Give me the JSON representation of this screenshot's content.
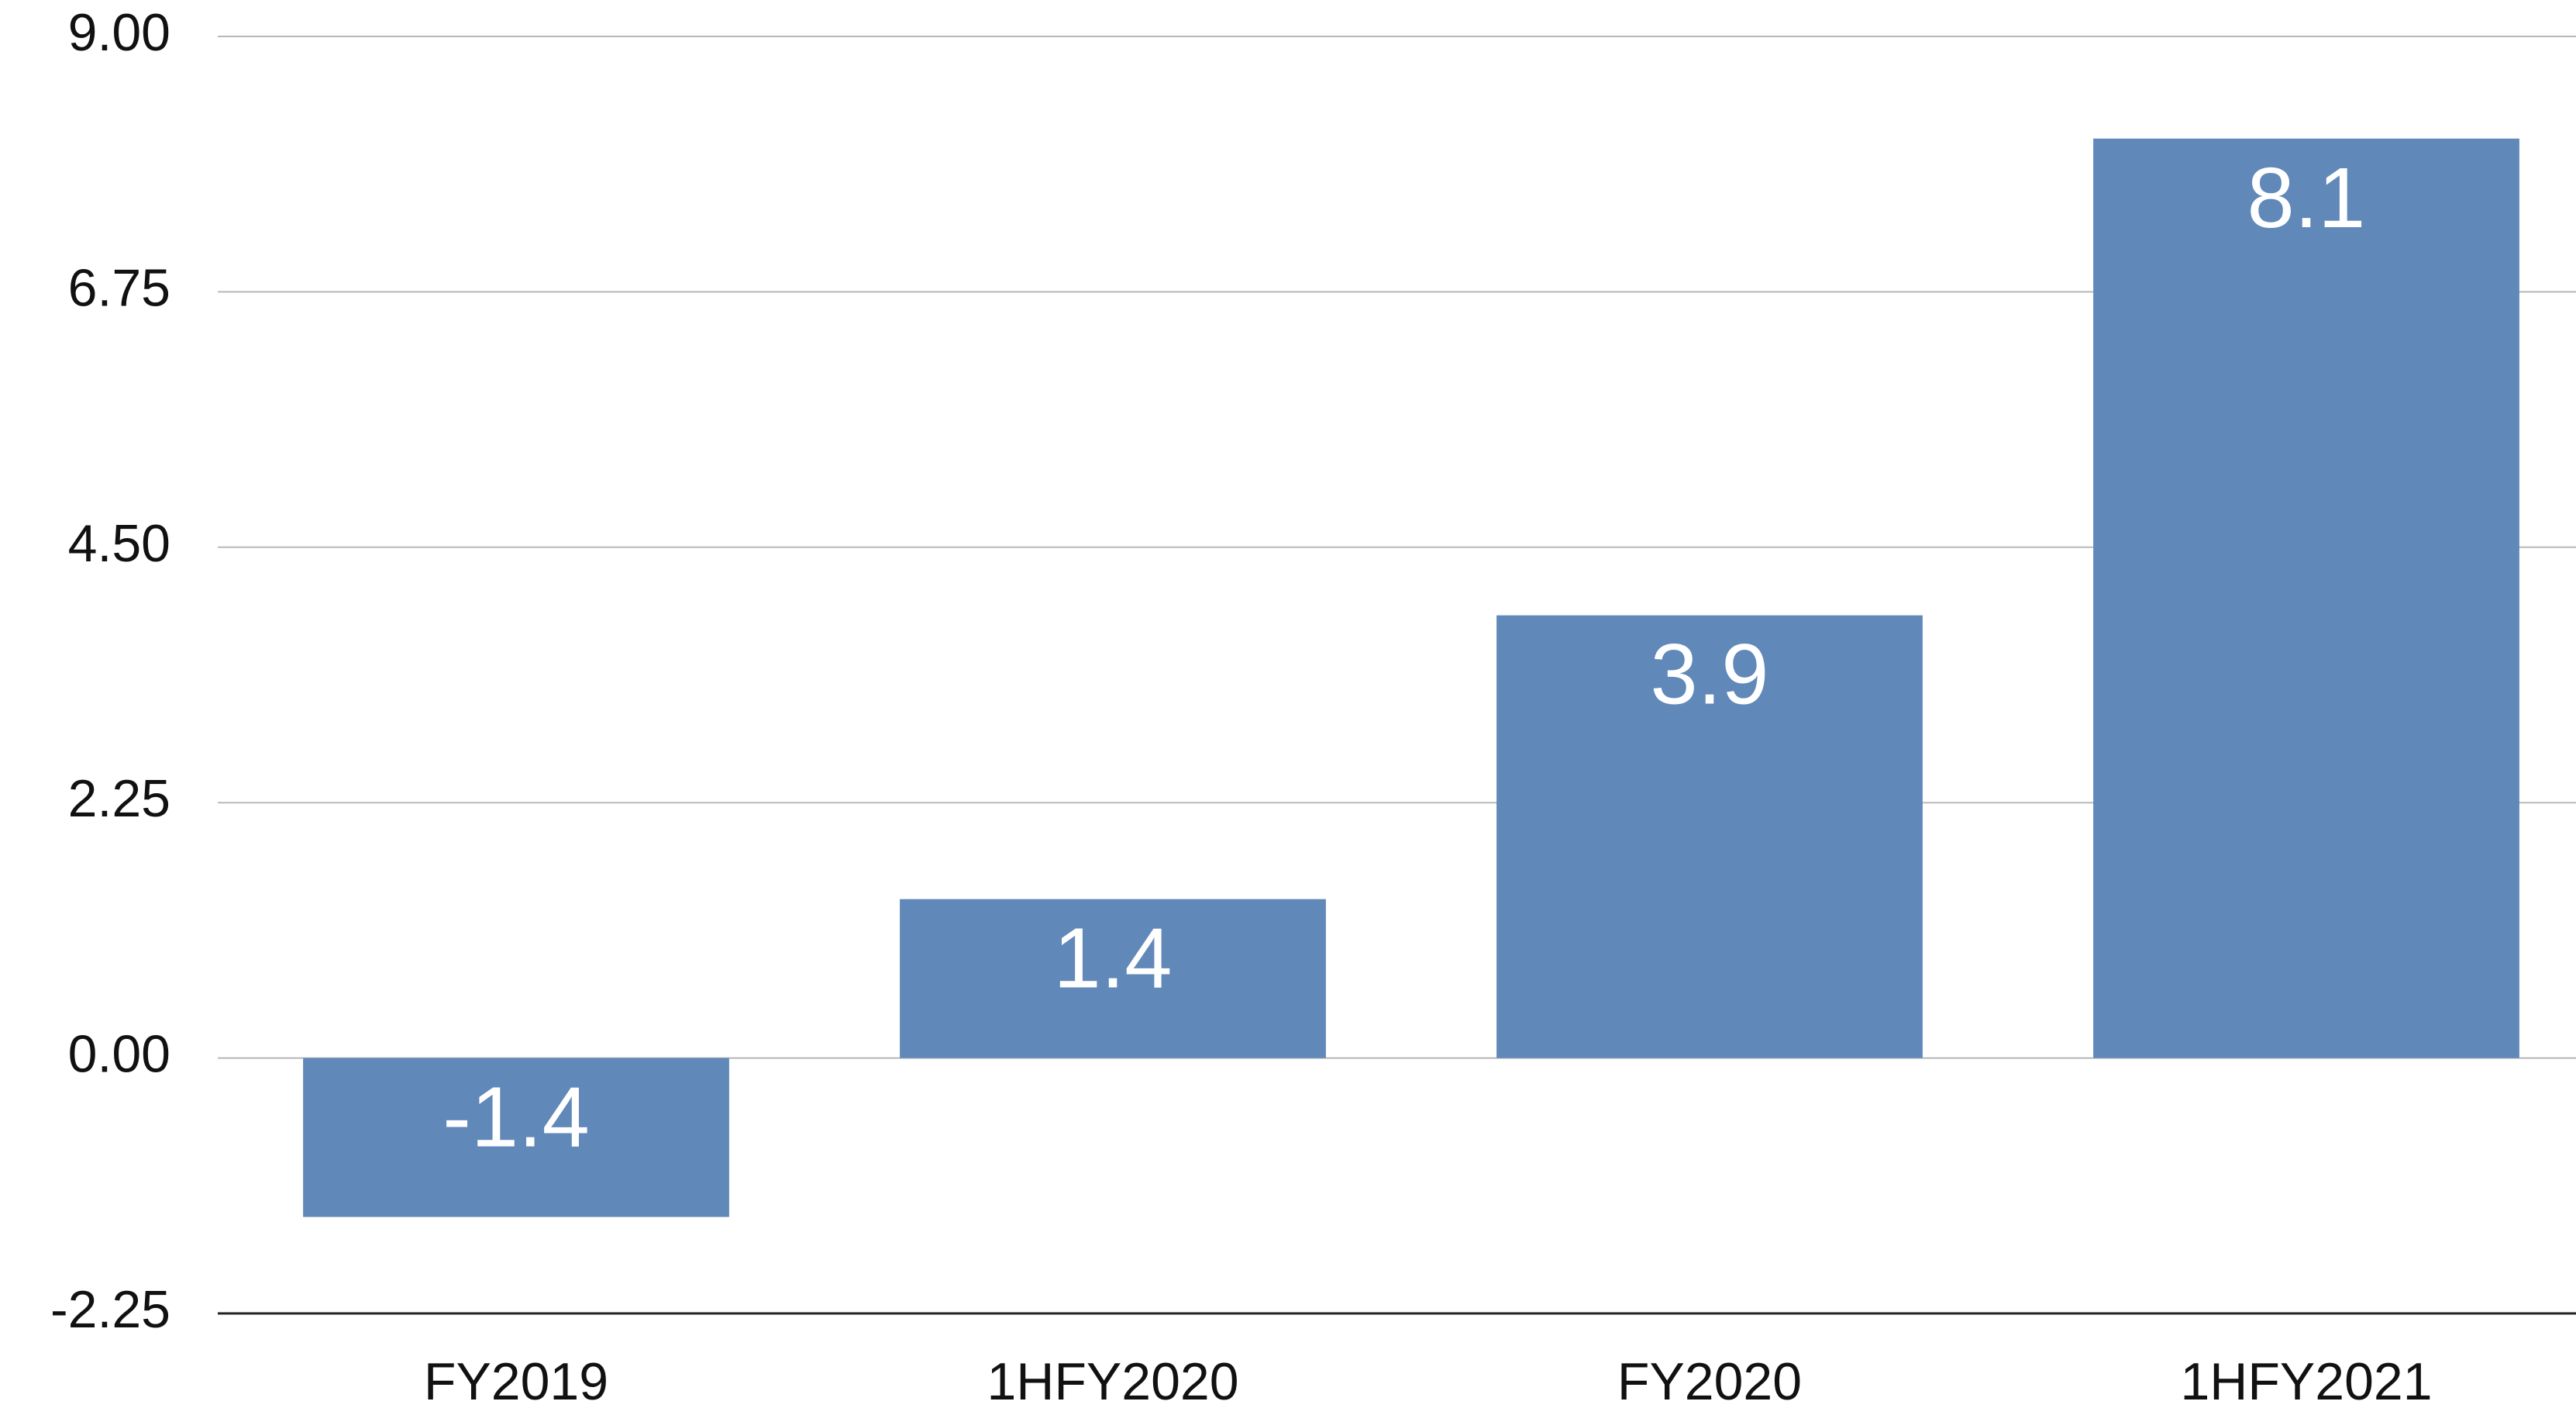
{
  "chart_data": {
    "type": "bar",
    "categories": [
      "FY2019",
      "1HFY2020",
      "FY2020",
      "1HFY2021"
    ],
    "values": [
      -1.4,
      1.4,
      3.9,
      8.1
    ],
    "color": "#6088b9",
    "ylim": [
      -2.25,
      9
    ],
    "yticks": [
      {
        "value": -2.25,
        "label": "-2.25"
      },
      {
        "value": 0,
        "label": "0.00"
      },
      {
        "value": 2.25,
        "label": "2.25"
      },
      {
        "value": 4.5,
        "label": "4.50"
      },
      {
        "value": 6.75,
        "label": "6.75"
      },
      {
        "value": 9,
        "label": "9.00"
      }
    ],
    "grid": true
  }
}
